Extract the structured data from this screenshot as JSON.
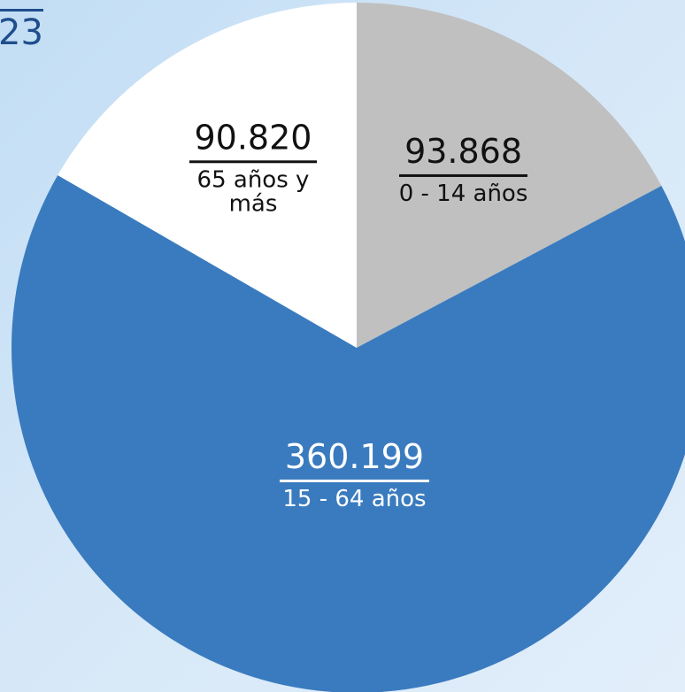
{
  "chart_data": {
    "type": "pie",
    "annotations": [
      "23"
    ],
    "categories": [
      "0 - 14 años",
      "15 - 64 años",
      "65 años y más"
    ],
    "values": [
      93868,
      360199,
      90820
    ],
    "value_labels": [
      "93.868",
      "360.199",
      "90.820"
    ],
    "colors": [
      "#c0c0c0",
      "#3a7bbf",
      "#ffffff"
    ]
  }
}
